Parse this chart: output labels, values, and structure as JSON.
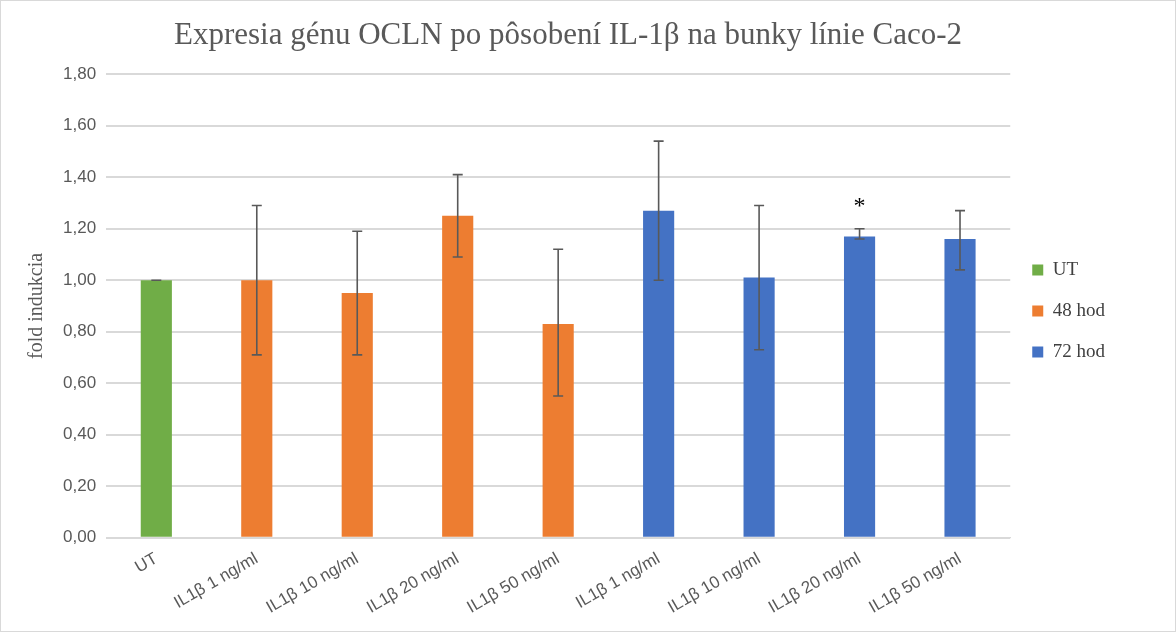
{
  "chart_data": {
    "type": "bar",
    "title": "Expresia génu OCLN po pôsobení IL-1β na bunky línie Caco-2",
    "ylabel": "fold indukcia",
    "categories": [
      "UT",
      "IL1β 1 ng/ml",
      "IL1β 10 ng/ml",
      "IL1β 20 ng/ml",
      "IL1β 50 ng/ml",
      "IL1β 1 ng/ml",
      "IL1β 10 ng/ml",
      "IL1β 20 ng/ml",
      "IL1β 50 ng/ml"
    ],
    "series": [
      {
        "name": "UT",
        "color": "#70ad47",
        "values": [
          1.0,
          null,
          null,
          null,
          null,
          null,
          null,
          null,
          null
        ],
        "errors": [
          0,
          null,
          null,
          null,
          null,
          null,
          null,
          null,
          null
        ]
      },
      {
        "name": "48 hod",
        "color": "#ed7d31",
        "values": [
          null,
          1.0,
          0.95,
          1.25,
          0.83,
          null,
          null,
          null,
          null
        ],
        "errors": [
          null,
          [
            0.71,
            1.29
          ],
          [
            0.71,
            1.19
          ],
          [
            1.09,
            1.41
          ],
          [
            0.55,
            1.12
          ],
          null,
          null,
          null,
          null
        ]
      },
      {
        "name": "72 hod",
        "color": "#4472c4",
        "values": [
          null,
          null,
          null,
          null,
          null,
          1.27,
          1.01,
          1.17,
          1.16
        ],
        "value_labels": [
          null,
          null,
          null,
          null,
          null,
          null,
          null,
          "*",
          null
        ],
        "errors": [
          null,
          null,
          null,
          null,
          null,
          [
            1.0,
            1.54
          ],
          [
            0.73,
            1.29
          ],
          [
            1.16,
            1.2
          ],
          [
            1.04,
            1.27
          ]
        ]
      }
    ],
    "ylim": [
      0,
      1.8
    ],
    "yticks": [
      {
        "value": 0,
        "label": "0,00"
      },
      {
        "value": 0.2,
        "label": "0,20"
      },
      {
        "value": 0.4,
        "label": "0,40"
      },
      {
        "value": 0.6,
        "label": "0,60"
      },
      {
        "value": 0.8,
        "label": "0,80"
      },
      {
        "value": 1.0,
        "label": "1,00"
      },
      {
        "value": 1.2,
        "label": "1,20"
      },
      {
        "value": 1.4,
        "label": "1,40"
      },
      {
        "value": 1.6,
        "label": "1,60"
      },
      {
        "value": 1.8,
        "label": "1,80"
      }
    ],
    "grid": "y",
    "legend": "right"
  }
}
